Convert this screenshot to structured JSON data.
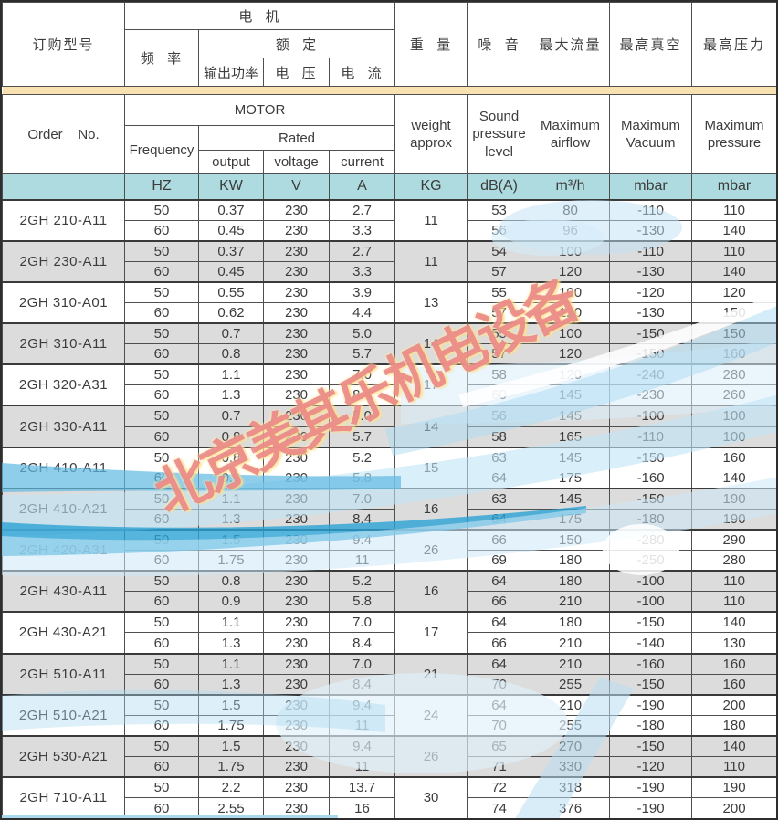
{
  "header": {
    "order_cn": "订购型号",
    "motor_cn": "电  机",
    "frequency_cn": "频  率",
    "rated_cn": "额  定",
    "output_cn": "输出功率",
    "voltage_cn": "电  压",
    "current_cn": "电  流",
    "weight_cn": "重  量",
    "noise_cn": "噪  音",
    "airflow_cn": "最大流量",
    "vacuum_cn": "最高真空",
    "pressure_cn": "最高压力",
    "order_en": "Order    No.",
    "motor_en": "MOTOR",
    "frequency_en": "Frequency",
    "rated_en": "Rated",
    "output_en": "output",
    "voltage_en": "voltage",
    "current_en": "current",
    "weight_en": "weight\napprox",
    "noise_en": "Sound\npressure\nlevel",
    "airflow_en": "Maximum\nairflow",
    "vacuum_en": "Maximum\nVacuum",
    "pressure_en": "Maximum\npressure"
  },
  "units": {
    "hz": "HZ",
    "kw": "KW",
    "v": "V",
    "a": "A",
    "kg": "KG",
    "db": "dB(A)",
    "m3h": "m³/h",
    "vac": "mbar",
    "pres": "mbar"
  },
  "watermark": "北京美其乐机电设备",
  "colors": {
    "units_bg": "#aedbdf",
    "alt_row_bg": "#dcdcdc",
    "band_bg": "#f8e2b2",
    "border": "#4f4f4f",
    "swoosh_dark": "#2aa3d4",
    "swoosh_mid": "#5fb9e2",
    "swoosh_light": "#bfe4f5",
    "watermark_pink": "#e77985"
  },
  "models": [
    {
      "name": "2GH 210-A11",
      "weight": "11",
      "rows": [
        [
          "50",
          "0.37",
          "230",
          "2.7",
          "53",
          "80",
          "-110",
          "110"
        ],
        [
          "60",
          "0.45",
          "230",
          "3.3",
          "56",
          "96",
          "-130",
          "140"
        ]
      ]
    },
    {
      "name": "2GH 230-A11",
      "weight": "11",
      "rows": [
        [
          "50",
          "0.37",
          "230",
          "2.7",
          "54",
          "100",
          "-110",
          "110"
        ],
        [
          "60",
          "0.45",
          "230",
          "3.3",
          "57",
          "120",
          "-130",
          "140"
        ]
      ]
    },
    {
      "name": "2GH 310-A01",
      "weight": "13",
      "rows": [
        [
          "50",
          "0.55",
          "230",
          "3.9",
          "55",
          "100",
          "-120",
          "120"
        ],
        [
          "60",
          "0.62",
          "230",
          "4.4",
          "57",
          "120",
          "-130",
          "150"
        ]
      ]
    },
    {
      "name": "2GH 310-A11",
      "weight": "14",
      "rows": [
        [
          "50",
          "0.7",
          "230",
          "5.0",
          "55",
          "100",
          "-150",
          "150"
        ],
        [
          "60",
          "0.8",
          "230",
          "5.7",
          "57",
          "120",
          "-150",
          "160"
        ]
      ]
    },
    {
      "name": "2GH 320-A31",
      "weight": "17",
      "rows": [
        [
          "50",
          "1.1",
          "230",
          "7.0",
          "58",
          "120",
          "-240",
          "280"
        ],
        [
          "60",
          "1.3",
          "230",
          "8.4",
          "60",
          "145",
          "-230",
          "260"
        ]
      ]
    },
    {
      "name": "2GH 330-A11",
      "weight": "14",
      "rows": [
        [
          "50",
          "0.7",
          "230",
          "5.0",
          "56",
          "145",
          "-100",
          "100"
        ],
        [
          "60",
          "0.8",
          "230",
          "5.7",
          "58",
          "165",
          "-110",
          "100"
        ]
      ]
    },
    {
      "name": "2GH 410-A11",
      "weight": "15",
      "rows": [
        [
          "50",
          "0.8",
          "230",
          "5.2",
          "63",
          "145",
          "-150",
          "160"
        ],
        [
          "60",
          "0.9",
          "230",
          "5.8",
          "64",
          "175",
          "-160",
          "140"
        ]
      ]
    },
    {
      "name": "2GH 410-A21",
      "weight": "16",
      "rows": [
        [
          "50",
          "1.1",
          "230",
          "7.0",
          "63",
          "145",
          "-150",
          "190"
        ],
        [
          "60",
          "1.3",
          "230",
          "8.4",
          "64",
          "175",
          "-180",
          "190"
        ]
      ]
    },
    {
      "name": "2GH 420-A31",
      "weight": "26",
      "rows": [
        [
          "50",
          "1.5",
          "230",
          "9.4",
          "66",
          "150",
          "-280",
          "290"
        ],
        [
          "60",
          "1.75",
          "230",
          "11",
          "69",
          "180",
          "-250",
          "280"
        ]
      ]
    },
    {
      "name": "2GH 430-A11",
      "weight": "16",
      "rows": [
        [
          "50",
          "0.8",
          "230",
          "5.2",
          "64",
          "180",
          "-100",
          "110"
        ],
        [
          "60",
          "0.9",
          "230",
          "5.8",
          "66",
          "210",
          "-100",
          "110"
        ]
      ]
    },
    {
      "name": "2GH 430-A21",
      "weight": "17",
      "rows": [
        [
          "50",
          "1.1",
          "230",
          "7.0",
          "64",
          "180",
          "-150",
          "140"
        ],
        [
          "60",
          "1.3",
          "230",
          "8.4",
          "66",
          "210",
          "-140",
          "130"
        ]
      ]
    },
    {
      "name": "2GH 510-A11",
      "weight": "21",
      "rows": [
        [
          "50",
          "1.1",
          "230",
          "7.0",
          "64",
          "210",
          "-160",
          "160"
        ],
        [
          "60",
          "1.3",
          "230",
          "8.4",
          "70",
          "255",
          "-150",
          "160"
        ]
      ]
    },
    {
      "name": "2GH 510-A21",
      "weight": "24",
      "rows": [
        [
          "50",
          "1.5",
          "230",
          "9.4",
          "64",
          "210",
          "-190",
          "200"
        ],
        [
          "60",
          "1.75",
          "230",
          "11",
          "70",
          "255",
          "-180",
          "180"
        ]
      ]
    },
    {
      "name": "2GH 530-A21",
      "weight": "26",
      "rows": [
        [
          "50",
          "1.5",
          "230",
          "9.4",
          "65",
          "270",
          "-150",
          "140"
        ],
        [
          "60",
          "1.75",
          "230",
          "11",
          "71",
          "330",
          "-120",
          "110"
        ]
      ]
    },
    {
      "name": "2GH 710-A11",
      "weight": "30",
      "rows": [
        [
          "50",
          "2.2",
          "230",
          "13.7",
          "72",
          "318",
          "-190",
          "190"
        ],
        [
          "60",
          "2.55",
          "230",
          "16",
          "74",
          "376",
          "-190",
          "200"
        ]
      ]
    }
  ]
}
